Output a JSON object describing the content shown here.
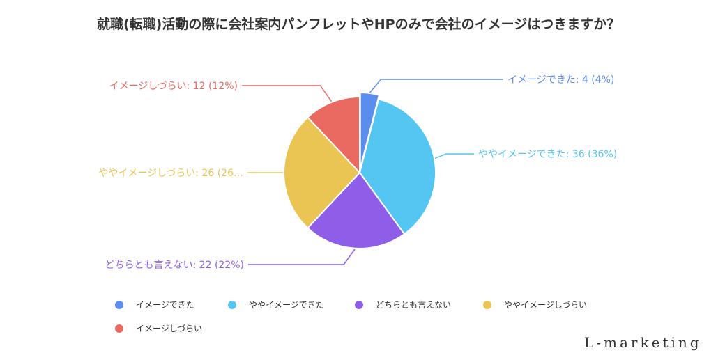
{
  "chart_data": {
    "type": "pie",
    "title": "就職(転職)活動の際に会社案内パンフレットやHPのみで会社のイメージはつきますか？",
    "categories": [
      "イメージできた",
      "ややイメージできた",
      "どちらとも言えない",
      "ややイメージしづらい",
      "イメージしづらい"
    ],
    "values": [
      4,
      36,
      22,
      26,
      12
    ],
    "percents": [
      "4%",
      "36%",
      "22%",
      "26%",
      "12%"
    ],
    "slice_labels": [
      "イメージできた: 4 (4%)",
      "ややイメージできた: 36 (36%)",
      "どちらとも言えない: 22 (22%)",
      "ややイメージしづらい: 26 (26…",
      "イメージしづらい: 12 (12%)"
    ],
    "colors": [
      "#5b8def",
      "#55c6f1",
      "#8f5ee9",
      "#ebc554",
      "#ea6a62"
    ],
    "exploded_index": 0,
    "legend_position": "bottom-left"
  },
  "watermark": "L-marketing"
}
